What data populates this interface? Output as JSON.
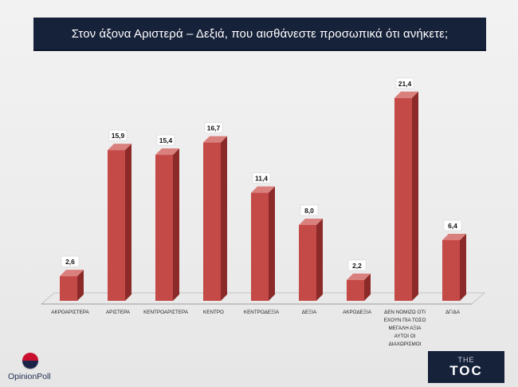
{
  "header": {
    "title": "Στον άξονα Αριστερά – Δεξιά, που αισθάνεστε προσωπικά ότι ανήκετε;"
  },
  "logos": {
    "opinion": "Opinion",
    "poll": "Poll",
    "toc_the": "THE",
    "toc_main": "TOC"
  },
  "colors": {
    "bar_front": "#c44a48",
    "bar_side": "#8b2a28",
    "bar_top": "#d9807d",
    "title_bg": "#16213a"
  },
  "chart_data": {
    "type": "bar",
    "title": "Στον άξονα Αριστερά – Δεξιά, που αισθάνεστε προσωπικά ότι ανήκετε;",
    "categories": [
      [
        "ΑΚΡΟΑΡΙΣΤΕΡΑ"
      ],
      [
        "ΑΡΙΣΤΕΡΑ"
      ],
      [
        "ΚΕΝΤΡΟΑΡΙΣΤΕΡΑ"
      ],
      [
        "ΚΕΝΤΡΟ"
      ],
      [
        "ΚΕΝΤΡΟΔΕΞΙΑ"
      ],
      [
        "ΔΕΞΙΑ"
      ],
      [
        "ΑΚΡΟΔΕΞΙΑ"
      ],
      [
        "ΔΕΝ ΝΟΜΙΖΩ ΟΤΙ",
        "ΕΧΟΥΝ ΠΙΑ ΤΟΣΟ",
        "ΜΕΓΑΛΗ ΑΞΙΑ",
        "ΑΥΤΟΙ ΟΙ",
        "ΔΙΑΧΩΡΙΣΜΟΙ"
      ],
      [
        "ΔΓ/ΔΑ"
      ]
    ],
    "values": [
      2.6,
      15.9,
      15.4,
      16.7,
      11.4,
      8.0,
      2.2,
      21.4,
      6.4
    ],
    "value_labels": [
      "2,6",
      "15,9",
      "15,4",
      "16,7",
      "11,4",
      "8,0",
      "2,2",
      "21,4",
      "6,4"
    ],
    "ylim": [
      0,
      25
    ],
    "grid": false,
    "legend": "none",
    "xlabel": "",
    "ylabel": ""
  }
}
